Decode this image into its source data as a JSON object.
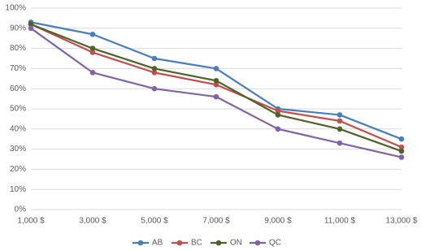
{
  "chart_data": {
    "type": "line",
    "categories": [
      "1,000 $",
      "3,000 $",
      "5,000 $",
      "7,000 $",
      "9,000 $",
      "11,000 $",
      "13,000 $"
    ],
    "series": [
      {
        "name": "AB",
        "color": "#4a7ebb",
        "values": [
          93,
          87,
          75,
          70,
          50,
          47,
          35
        ]
      },
      {
        "name": "BC",
        "color": "#c0504d",
        "values": [
          92,
          78,
          68,
          62,
          49,
          44,
          31
        ]
      },
      {
        "name": "ON",
        "color": "#4f6228",
        "values": [
          92,
          80,
          70,
          64,
          47,
          40,
          29
        ]
      },
      {
        "name": "QC",
        "color": "#8064a2",
        "values": [
          90,
          68,
          60,
          56,
          40,
          33,
          26
        ]
      }
    ],
    "ylim": [
      0,
      100
    ],
    "yticks": [
      {
        "value": 0,
        "label": "0%"
      },
      {
        "value": 10,
        "label": "10%"
      },
      {
        "value": 20,
        "label": "20%"
      },
      {
        "value": 30,
        "label": "30%"
      },
      {
        "value": 40,
        "label": "40%"
      },
      {
        "value": 50,
        "label": "50%"
      },
      {
        "value": 60,
        "label": "60%"
      },
      {
        "value": 70,
        "label": "70%"
      },
      {
        "value": 80,
        "label": "80%"
      },
      {
        "value": 90,
        "label": "90%"
      },
      {
        "value": 100,
        "label": "100%"
      }
    ],
    "grid": true,
    "legend": "bottom"
  }
}
